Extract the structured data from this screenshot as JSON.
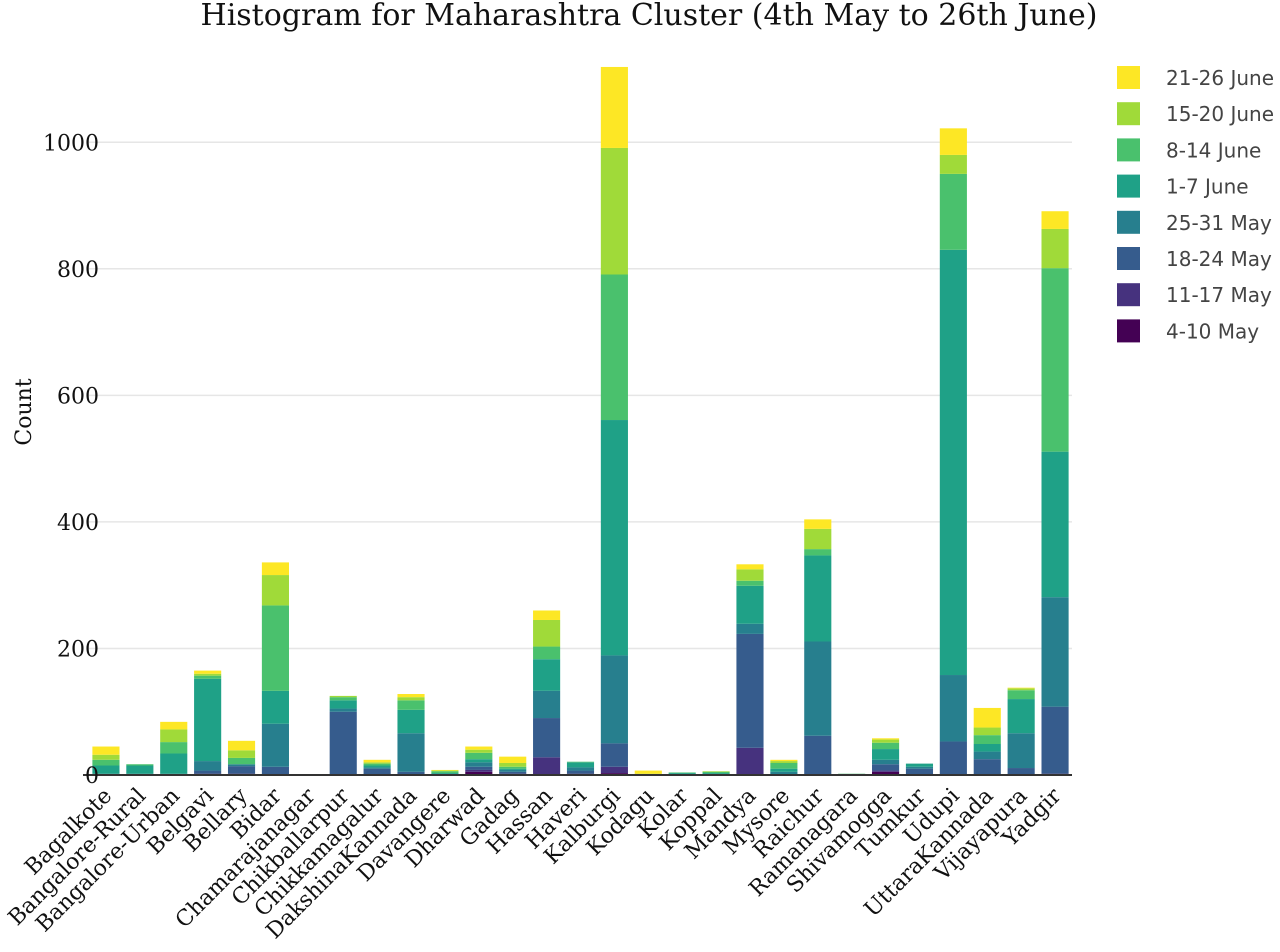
{
  "chart_data": {
    "type": "bar",
    "stacked": true,
    "title": "Histogram for Maharashtra Cluster (4th May to 26th June)",
    "xlabel": "",
    "ylabel": "Count",
    "ylim": [
      0,
      1130
    ],
    "yticks": [
      0,
      200,
      400,
      600,
      800,
      1000
    ],
    "grid": true,
    "legend_position": "top-right",
    "categories": [
      "Bagalkote",
      "Bangalore-Rural",
      "Bangalore-Urban",
      "Belgavi",
      "Bellary",
      "Bidar",
      "Chamarajanagar",
      "Chikballarpur",
      "Chikkamagalur",
      "DakshinaKannada",
      "Davangere",
      "Dharwad",
      "Gadag",
      "Hassan",
      "Haveri",
      "Kalburgi",
      "Kodagu",
      "Kolar",
      "Koppal",
      "Mandya",
      "Mysore",
      "Raichur",
      "Ramanagara",
      "Shivamogga",
      "Tumkur",
      "Udupi",
      "UttaraKannada",
      "Vijayapura",
      "Yadgir"
    ],
    "series": [
      {
        "name": "4-10 May",
        "color": "#440154",
        "values": [
          0,
          0,
          0,
          2,
          2,
          0,
          0,
          0,
          0,
          0,
          0,
          5,
          2,
          0,
          2,
          3,
          0,
          0,
          0,
          0,
          0,
          0,
          0,
          5,
          0,
          0,
          0,
          0,
          2
        ]
      },
      {
        "name": "11-17 May",
        "color": "#46327e",
        "values": [
          0,
          0,
          0,
          0,
          0,
          0,
          0,
          0,
          0,
          0,
          0,
          3,
          0,
          28,
          0,
          10,
          0,
          0,
          0,
          43,
          0,
          0,
          0,
          2,
          0,
          0,
          0,
          0,
          0
        ]
      },
      {
        "name": "18-24 May",
        "color": "#365c8d",
        "values": [
          0,
          0,
          0,
          5,
          12,
          13,
          0,
          100,
          10,
          5,
          0,
          5,
          3,
          62,
          5,
          37,
          0,
          0,
          0,
          180,
          0,
          62,
          0,
          10,
          10,
          53,
          25,
          11,
          106
        ]
      },
      {
        "name": "25-31 May",
        "color": "#277f8e",
        "values": [
          2,
          2,
          2,
          15,
          3,
          68,
          0,
          5,
          2,
          61,
          0,
          7,
          3,
          43,
          5,
          139,
          0,
          0,
          1,
          16,
          5,
          149,
          0,
          7,
          3,
          105,
          12,
          55,
          173
        ]
      },
      {
        "name": "1-7 June",
        "color": "#1fa187",
        "values": [
          13,
          13,
          32,
          130,
          0,
          52,
          1,
          13,
          3,
          37,
          3,
          5,
          2,
          50,
          8,
          372,
          0,
          3,
          2,
          60,
          5,
          136,
          1,
          17,
          5,
          672,
          12,
          54,
          230
        ]
      },
      {
        "name": "8-14 June",
        "color": "#4ac16d",
        "values": [
          9,
          2,
          18,
          5,
          10,
          135,
          0,
          5,
          3,
          15,
          3,
          10,
          3,
          20,
          1,
          230,
          1,
          1,
          2,
          8,
          9,
          10,
          1,
          10,
          0,
          120,
          14,
          14,
          290
        ]
      },
      {
        "name": "15-20 June",
        "color": "#a0da39",
        "values": [
          8,
          0,
          20,
          3,
          12,
          48,
          0,
          2,
          2,
          5,
          1,
          5,
          6,
          42,
          0,
          200,
          1,
          0,
          1,
          18,
          3,
          32,
          0,
          5,
          0,
          30,
          12,
          3,
          62
        ]
      },
      {
        "name": "21-26 June",
        "color": "#fde725",
        "values": [
          13,
          0,
          12,
          5,
          15,
          20,
          0,
          0,
          4,
          5,
          1,
          5,
          10,
          15,
          0,
          128,
          5,
          0,
          0,
          8,
          2,
          15,
          0,
          2,
          0,
          42,
          31,
          1,
          28
        ]
      }
    ]
  }
}
